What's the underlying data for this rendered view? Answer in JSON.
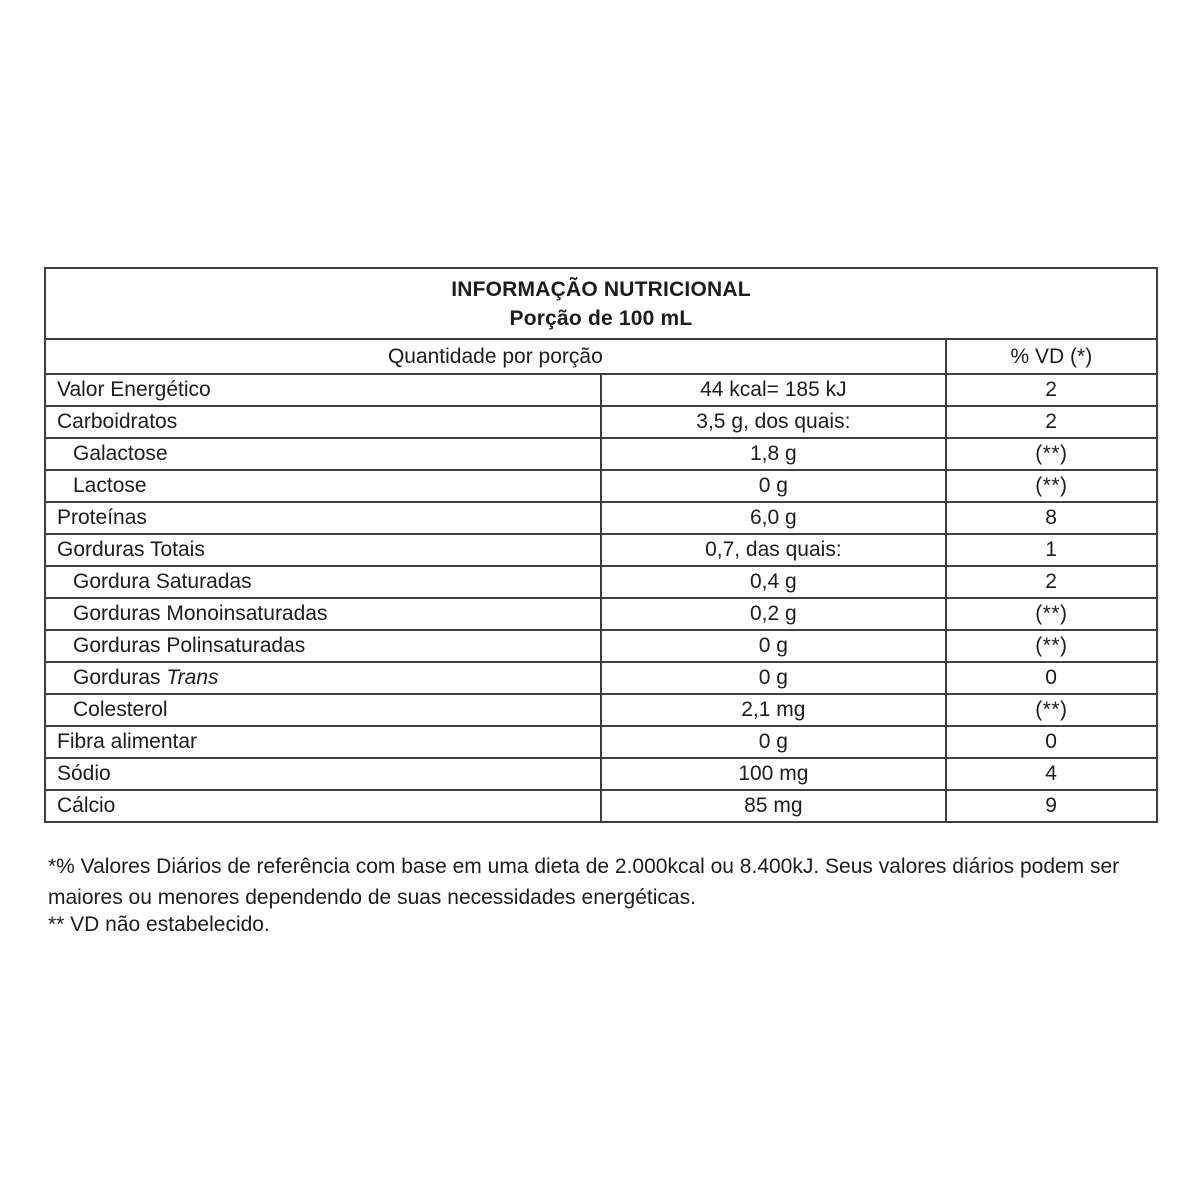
{
  "table": {
    "title": "INFORMAÇÃO NUTRICIONAL",
    "subtitle": "Porção de 100 mL",
    "col_header_quantity": "Quantidade por porção",
    "col_header_vd": "% VD (*)",
    "rows": [
      {
        "label": "Valor Energético",
        "indent": false,
        "amount": "44 kcal= 185 kJ",
        "vd": "2"
      },
      {
        "label": "Carboidratos",
        "indent": false,
        "amount": "3,5 g, dos quais:",
        "vd": "2"
      },
      {
        "label": "Galactose",
        "indent": true,
        "amount": "1,8 g",
        "vd": "(**)"
      },
      {
        "label": "Lactose",
        "indent": true,
        "amount": "0 g",
        "vd": "(**)"
      },
      {
        "label": "Proteínas",
        "indent": false,
        "amount": "6,0 g",
        "vd": "8"
      },
      {
        "label": "Gorduras Totais",
        "indent": false,
        "amount": "0,7, das quais:",
        "vd": "1"
      },
      {
        "label": "Gordura Saturadas",
        "indent": true,
        "amount": "0,4 g",
        "vd": "2"
      },
      {
        "label": "Gorduras Monoinsaturadas",
        "indent": true,
        "amount": "0,2 g",
        "vd": "(**)"
      },
      {
        "label": "Gorduras Polinsaturadas",
        "indent": true,
        "amount": "0 g",
        "vd": "(**)"
      },
      {
        "label": "Gorduras ",
        "label_italic": "Trans",
        "indent": true,
        "amount": "0 g",
        "vd": "0"
      },
      {
        "label": "Colesterol",
        "indent": true,
        "amount": "2,1 mg",
        "vd": "(**)"
      },
      {
        "label": "Fibra alimentar",
        "indent": false,
        "amount": "0 g",
        "vd": "0"
      },
      {
        "label": "Sódio",
        "indent": false,
        "amount": "100 mg",
        "vd": "4"
      },
      {
        "label": "Cálcio",
        "indent": false,
        "amount": "85 mg",
        "vd": "9"
      }
    ],
    "footnotes": [
      "*% Valores Diários de referência com base em uma dieta de 2.000kcal ou 8.400kJ. Seus valores diários podem ser maiores ou menores dependendo de suas necessidades energéticas.",
      "** VD não estabelecido."
    ],
    "colors": {
      "border": "#3e3e3e",
      "text": "#1c1c1c",
      "background": "#ffffff"
    }
  }
}
